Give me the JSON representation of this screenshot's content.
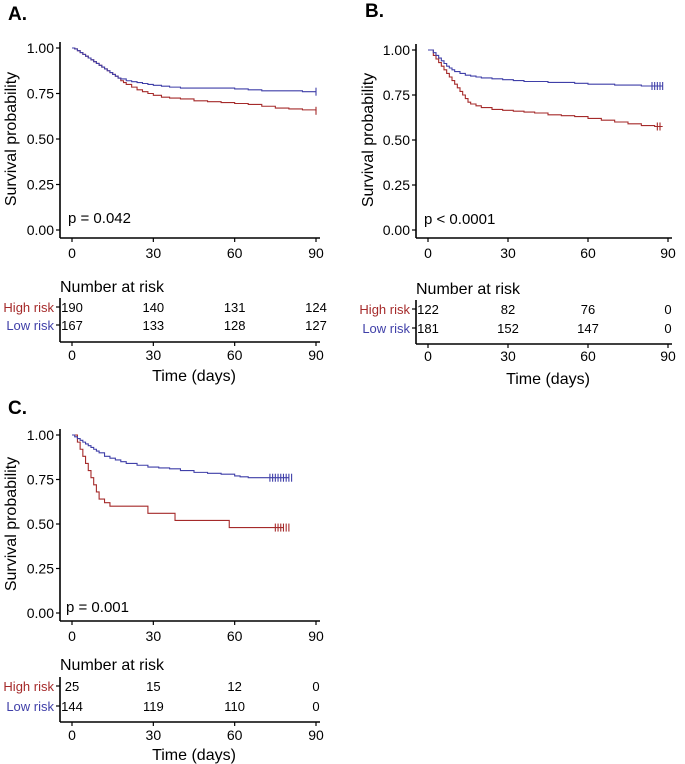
{
  "colors": {
    "high": "#A52A2A",
    "low": "#3F3FA8",
    "axis": "#000000"
  },
  "chart_data": [
    {
      "type": "line",
      "subtype": "kaplan-meier",
      "panel": "A.",
      "xlabel": "Time (days)",
      "ylabel": "Survival probability",
      "xlim": [
        0,
        90
      ],
      "ylim": [
        0,
        1
      ],
      "x_ticks": [
        "0",
        "30",
        "60",
        "90"
      ],
      "y_ticks": [
        "0.00",
        "0.25",
        "0.50",
        "0.75",
        "1.00"
      ],
      "p_value": "p = 0.042",
      "risk_title": "Number at risk",
      "risk_times": [
        0,
        30,
        60,
        90
      ],
      "series": [
        {
          "name": "High risk",
          "color_key": "high",
          "x": [
            0,
            1,
            2,
            3,
            4,
            5,
            6,
            7,
            8,
            9,
            10,
            11,
            12,
            13,
            14,
            15,
            16,
            17,
            18,
            19,
            20,
            22,
            24,
            26,
            28,
            30,
            33,
            36,
            40,
            45,
            50,
            55,
            60,
            65,
            70,
            75,
            80,
            85,
            90
          ],
          "y": [
            1.0,
            0.995,
            0.985,
            0.975,
            0.965,
            0.955,
            0.945,
            0.935,
            0.925,
            0.915,
            0.905,
            0.895,
            0.885,
            0.875,
            0.865,
            0.855,
            0.845,
            0.835,
            0.82,
            0.81,
            0.8,
            0.785,
            0.77,
            0.76,
            0.75,
            0.74,
            0.73,
            0.725,
            0.72,
            0.71,
            0.705,
            0.7,
            0.695,
            0.69,
            0.68,
            0.67,
            0.665,
            0.66,
            0.655
          ],
          "censor_x": [
            90
          ],
          "at_risk": [
            "190",
            "140",
            "131",
            "124"
          ]
        },
        {
          "name": "Low risk",
          "color_key": "low",
          "x": [
            0,
            1,
            2,
            3,
            4,
            5,
            6,
            7,
            8,
            9,
            10,
            11,
            12,
            13,
            14,
            15,
            16,
            17,
            18,
            20,
            22,
            24,
            26,
            28,
            30,
            33,
            36,
            40,
            45,
            50,
            55,
            60,
            65,
            70,
            75,
            80,
            85,
            90
          ],
          "y": [
            1.0,
            0.995,
            0.985,
            0.975,
            0.965,
            0.955,
            0.945,
            0.935,
            0.925,
            0.915,
            0.905,
            0.895,
            0.885,
            0.875,
            0.865,
            0.855,
            0.845,
            0.835,
            0.83,
            0.82,
            0.815,
            0.81,
            0.805,
            0.8,
            0.795,
            0.79,
            0.785,
            0.78,
            0.78,
            0.78,
            0.78,
            0.775,
            0.77,
            0.765,
            0.765,
            0.765,
            0.76,
            0.76
          ],
          "censor_x": [
            90
          ],
          "at_risk": [
            "167",
            "133",
            "128",
            "127"
          ]
        }
      ]
    },
    {
      "type": "line",
      "subtype": "kaplan-meier",
      "panel": "B.",
      "xlabel": "Time (days)",
      "ylabel": "Survival probability",
      "xlim": [
        0,
        90
      ],
      "ylim": [
        0,
        1
      ],
      "x_ticks": [
        "0",
        "30",
        "60",
        "90"
      ],
      "y_ticks": [
        "0.00",
        "0.25",
        "0.50",
        "0.75",
        "1.00"
      ],
      "p_value": "p < 0.0001",
      "risk_title": "Number at risk",
      "risk_times": [
        0,
        30,
        60,
        90
      ],
      "series": [
        {
          "name": "High risk",
          "color_key": "high",
          "x": [
            0,
            2,
            3,
            4,
            5,
            6,
            7,
            8,
            9,
            10,
            11,
            12,
            13,
            14,
            15,
            16,
            18,
            20,
            24,
            28,
            32,
            36,
            40,
            45,
            50,
            55,
            60,
            65,
            70,
            75,
            80,
            85,
            88
          ],
          "y": [
            1.0,
            0.97,
            0.95,
            0.93,
            0.91,
            0.89,
            0.87,
            0.85,
            0.83,
            0.81,
            0.79,
            0.77,
            0.75,
            0.73,
            0.71,
            0.7,
            0.69,
            0.68,
            0.67,
            0.665,
            0.66,
            0.655,
            0.65,
            0.64,
            0.635,
            0.63,
            0.62,
            0.61,
            0.6,
            0.59,
            0.58,
            0.575,
            0.575
          ],
          "censor_x": [
            86,
            87
          ],
          "at_risk": [
            "122",
            "82",
            "76",
            "0"
          ]
        },
        {
          "name": "Low risk",
          "color_key": "low",
          "x": [
            0,
            2,
            3,
            4,
            5,
            6,
            7,
            8,
            9,
            10,
            12,
            14,
            16,
            18,
            20,
            24,
            28,
            32,
            36,
            40,
            45,
            50,
            55,
            60,
            65,
            70,
            75,
            80,
            85,
            88
          ],
          "y": [
            1.0,
            0.985,
            0.97,
            0.955,
            0.94,
            0.925,
            0.91,
            0.9,
            0.89,
            0.88,
            0.87,
            0.86,
            0.855,
            0.85,
            0.845,
            0.84,
            0.835,
            0.83,
            0.825,
            0.825,
            0.82,
            0.82,
            0.815,
            0.81,
            0.81,
            0.805,
            0.805,
            0.8,
            0.8,
            0.8
          ],
          "censor_x": [
            84,
            85,
            86,
            87,
            88
          ],
          "at_risk": [
            "181",
            "152",
            "147",
            "0"
          ]
        }
      ]
    },
    {
      "type": "line",
      "subtype": "kaplan-meier",
      "panel": "C.",
      "xlabel": "Time (days)",
      "ylabel": "Survival probability",
      "xlim": [
        0,
        90
      ],
      "ylim": [
        0,
        1
      ],
      "x_ticks": [
        "0",
        "30",
        "60",
        "90"
      ],
      "y_ticks": [
        "0.00",
        "0.25",
        "0.50",
        "0.75",
        "1.00"
      ],
      "p_value": "p = 0.001",
      "risk_title": "Number at risk",
      "risk_times": [
        0,
        30,
        60,
        90
      ],
      "series": [
        {
          "name": "High risk",
          "color_key": "high",
          "x": [
            0,
            2,
            3,
            4,
            5,
            6,
            7,
            8,
            9,
            10,
            12,
            14,
            20,
            28,
            38,
            40,
            58,
            60,
            78
          ],
          "y": [
            1.0,
            0.96,
            0.92,
            0.88,
            0.84,
            0.8,
            0.76,
            0.72,
            0.68,
            0.64,
            0.62,
            0.6,
            0.6,
            0.56,
            0.52,
            0.52,
            0.48,
            0.48,
            0.48
          ],
          "censor_x": [
            75,
            76,
            77,
            78,
            79,
            80
          ],
          "at_risk": [
            "25",
            "15",
            "12",
            "0"
          ]
        },
        {
          "name": "Low risk",
          "color_key": "low",
          "x": [
            0,
            1,
            2,
            3,
            4,
            5,
            6,
            7,
            8,
            9,
            10,
            12,
            14,
            16,
            18,
            20,
            24,
            28,
            32,
            36,
            40,
            45,
            50,
            55,
            60,
            62,
            65,
            70,
            75,
            80
          ],
          "y": [
            1.0,
            0.99,
            0.98,
            0.97,
            0.96,
            0.95,
            0.94,
            0.93,
            0.92,
            0.91,
            0.9,
            0.88,
            0.87,
            0.86,
            0.85,
            0.84,
            0.83,
            0.82,
            0.815,
            0.81,
            0.8,
            0.79,
            0.785,
            0.78,
            0.77,
            0.765,
            0.76,
            0.76,
            0.76,
            0.76
          ],
          "censor_x": [
            73,
            74,
            75,
            76,
            77,
            78,
            79,
            80,
            81
          ],
          "at_risk": [
            "144",
            "119",
            "110",
            "0"
          ]
        }
      ]
    }
  ]
}
